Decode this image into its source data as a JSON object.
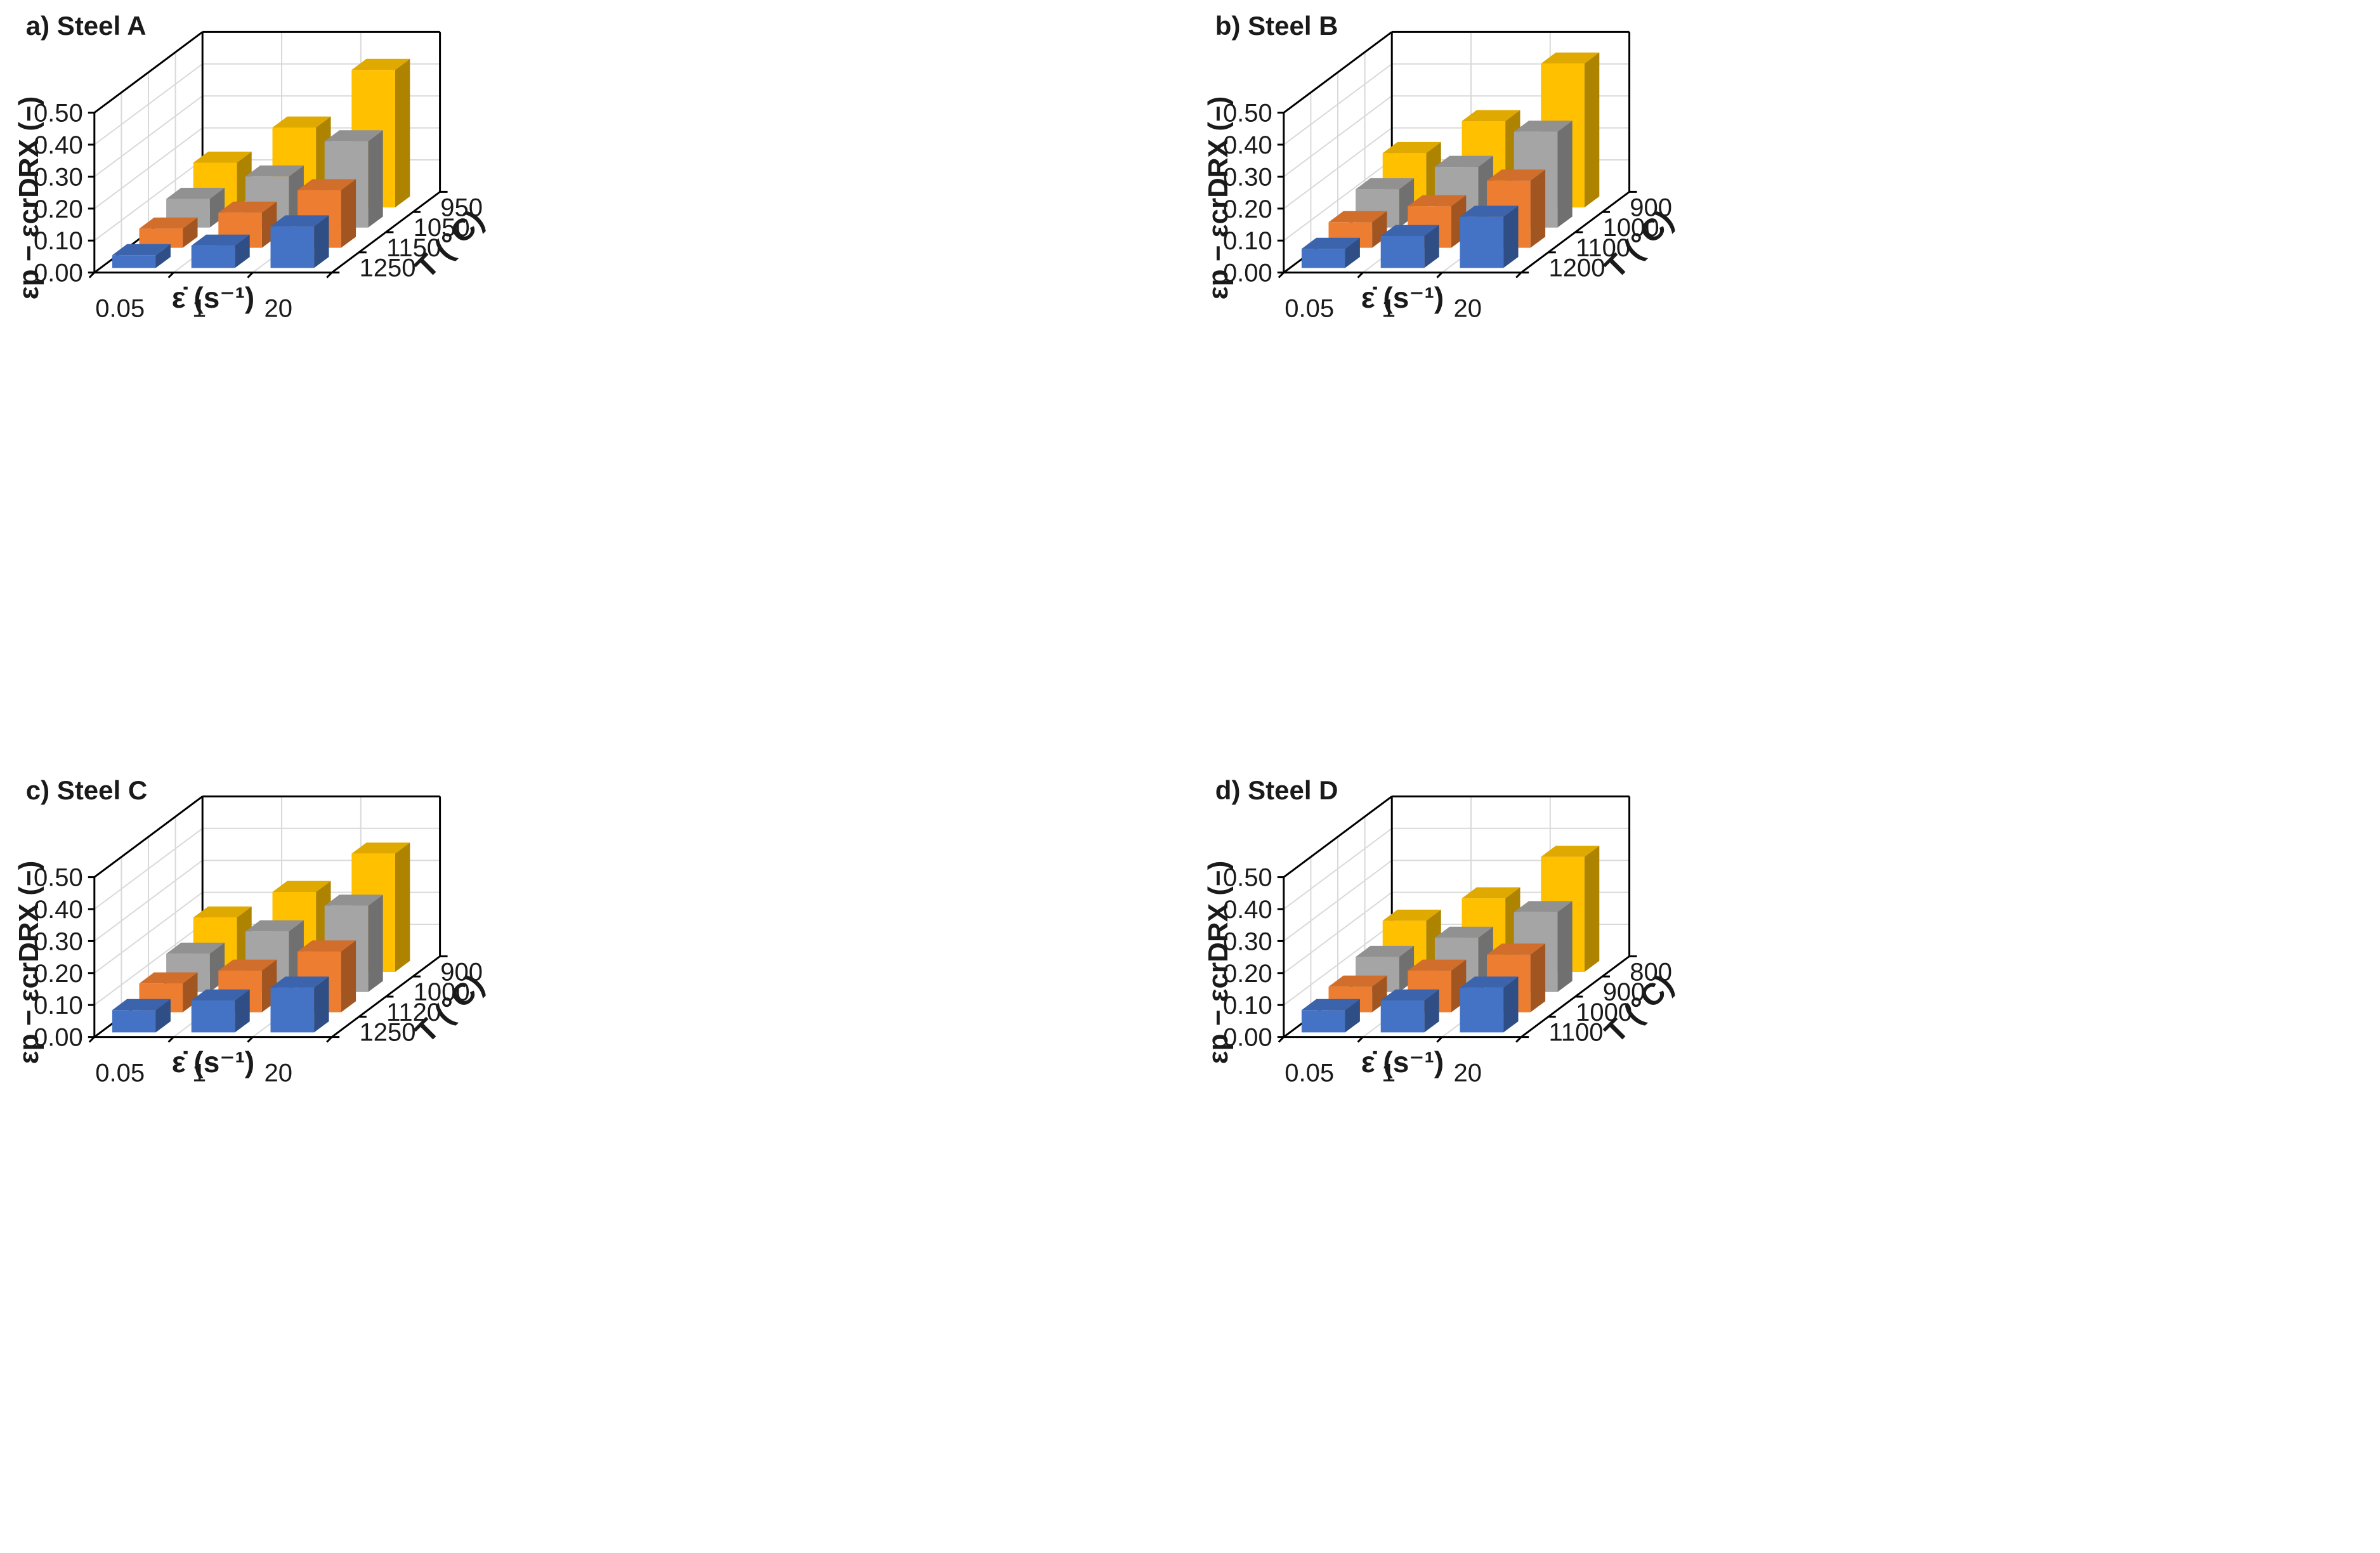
{
  "chart_data": [
    {
      "type": "bar",
      "title": "a) Steel A",
      "xlabel": "ε̇ (s⁻¹)",
      "ylabel": "εp − εcrDRX (−)",
      "zlabel": "T (°C)",
      "categories": [
        "0.05",
        "1",
        "20"
      ],
      "temperatures": [
        "1250",
        "1150",
        "1050",
        "950"
      ],
      "ylim": [
        0,
        0.5
      ],
      "yticks": [
        "0.00",
        "0.10",
        "0.20",
        "0.30",
        "0.40",
        "0.50"
      ],
      "series": [
        {
          "name": "1250",
          "values": [
            0.04,
            0.07,
            0.13
          ]
        },
        {
          "name": "1150",
          "values": [
            0.06,
            0.11,
            0.18
          ]
        },
        {
          "name": "1050",
          "values": [
            0.09,
            0.16,
            0.27
          ]
        },
        {
          "name": "950",
          "values": [
            0.14,
            0.25,
            0.43
          ]
        }
      ]
    },
    {
      "type": "bar",
      "title": "b) Steel B",
      "xlabel": "ε̇ (s⁻¹)",
      "ylabel": "εp − εcrDRX (−)",
      "zlabel": "T (°C)",
      "categories": [
        "0.05",
        "1",
        "20"
      ],
      "temperatures": [
        "1200",
        "1100",
        "1000",
        "900"
      ],
      "ylim": [
        0,
        0.5
      ],
      "yticks": [
        "0.00",
        "0.10",
        "0.20",
        "0.30",
        "0.40",
        "0.50"
      ],
      "series": [
        {
          "name": "1200",
          "values": [
            0.06,
            0.1,
            0.16
          ]
        },
        {
          "name": "1100",
          "values": [
            0.08,
            0.13,
            0.21
          ]
        },
        {
          "name": "1000",
          "values": [
            0.12,
            0.19,
            0.3
          ]
        },
        {
          "name": "900",
          "values": [
            0.17,
            0.27,
            0.45
          ]
        }
      ]
    },
    {
      "type": "bar",
      "title": "c) Steel C",
      "xlabel": "ε̇ (s⁻¹)",
      "ylabel": "εp − εcrDRX (−)",
      "zlabel": "T (°C)",
      "categories": [
        "0.05",
        "1",
        "20"
      ],
      "temperatures": [
        "1250",
        "1120",
        "1000",
        "900"
      ],
      "ylim": [
        0,
        0.5
      ],
      "yticks": [
        "0.00",
        "0.10",
        "0.20",
        "0.30",
        "0.40",
        "0.50"
      ],
      "series": [
        {
          "name": "1250",
          "values": [
            0.07,
            0.1,
            0.14
          ]
        },
        {
          "name": "1120",
          "values": [
            0.09,
            0.13,
            0.19
          ]
        },
        {
          "name": "1000",
          "values": [
            0.12,
            0.19,
            0.27
          ]
        },
        {
          "name": "900",
          "values": [
            0.17,
            0.25,
            0.37
          ]
        }
      ]
    },
    {
      "type": "bar",
      "title": "d) Steel D",
      "xlabel": "ε̇ (s⁻¹)",
      "ylabel": "εp − εcrDRX (−)",
      "zlabel": "T (°C)",
      "categories": [
        "0.05",
        "1",
        "20"
      ],
      "temperatures": [
        "1100",
        "1000",
        "900",
        "800"
      ],
      "ylim": [
        0,
        0.5
      ],
      "yticks": [
        "0.00",
        "0.10",
        "0.20",
        "0.30",
        "0.40",
        "0.50"
      ],
      "series": [
        {
          "name": "1100",
          "values": [
            0.07,
            0.1,
            0.14
          ]
        },
        {
          "name": "1000",
          "values": [
            0.08,
            0.13,
            0.18
          ]
        },
        {
          "name": "900",
          "values": [
            0.11,
            0.17,
            0.25
          ]
        },
        {
          "name": "800",
          "values": [
            0.16,
            0.23,
            0.36
          ]
        }
      ]
    }
  ],
  "colors": {
    "series": [
      "#4472c4",
      "#ed7d31",
      "#a5a5a5",
      "#ffc000"
    ],
    "axis": "#000000",
    "grid": "#d9d9d9"
  }
}
